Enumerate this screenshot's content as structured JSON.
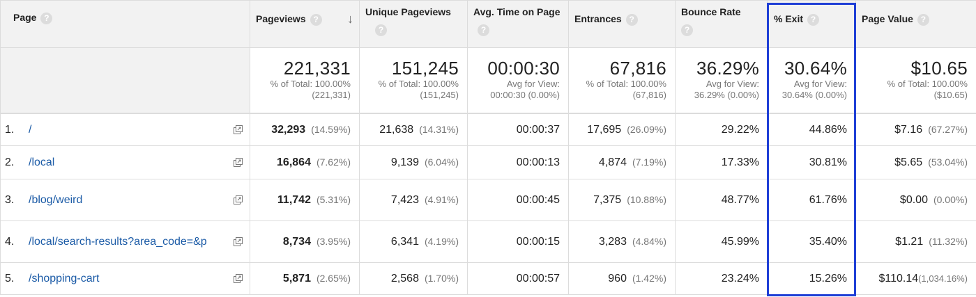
{
  "columns": [
    {
      "label": "Page"
    },
    {
      "label": "Pageviews"
    },
    {
      "label": "Unique Pageviews"
    },
    {
      "label": "Avg. Time on Page"
    },
    {
      "label": "Entrances"
    },
    {
      "label": "Bounce Rate"
    },
    {
      "label": "% Exit"
    },
    {
      "label": "Page Value"
    }
  ],
  "totals": {
    "pageviews": {
      "value": "221,331",
      "line1": "% of Total: 100.00%",
      "line2": "(221,331)"
    },
    "unique_pageviews": {
      "value": "151,245",
      "line1": "% of Total: 100.00%",
      "line2": "(151,245)"
    },
    "avg_time": {
      "value": "00:00:30",
      "line1": "Avg for View:",
      "line2": "00:00:30 (0.00%)"
    },
    "entrances": {
      "value": "67,816",
      "line1": "% of Total: 100.00%",
      "line2": "(67,816)"
    },
    "bounce_rate": {
      "value": "36.29%",
      "line1": "Avg for View:",
      "line2": "36.29% (0.00%)"
    },
    "exit": {
      "value": "30.64%",
      "line1": "Avg for View:",
      "line2": "30.64% (0.00%)"
    },
    "page_value": {
      "value": "$10.65",
      "line1": "% of Total: 100.00%",
      "line2": "($10.65)"
    }
  },
  "rows": [
    {
      "index": "1.",
      "page": "/",
      "pageviews": "32,293",
      "pageviews_pct": "(14.59%)",
      "unique": "21,638",
      "unique_pct": "(14.31%)",
      "avg_time": "00:00:37",
      "entrances": "17,695",
      "entrances_pct": "(26.09%)",
      "bounce": "29.22%",
      "exit": "44.86%",
      "value": "$7.16",
      "value_pct": "(67.27%)"
    },
    {
      "index": "2.",
      "page": "/local",
      "pageviews": "16,864",
      "pageviews_pct": "(7.62%)",
      "unique": "9,139",
      "unique_pct": "(6.04%)",
      "avg_time": "00:00:13",
      "entrances": "4,874",
      "entrances_pct": "(7.19%)",
      "bounce": "17.33%",
      "exit": "30.81%",
      "value": "$5.65",
      "value_pct": "(53.04%)"
    },
    {
      "index": "3.",
      "page": "/blog/weird",
      "pageviews": "11,742",
      "pageviews_pct": "(5.31%)",
      "unique": "7,423",
      "unique_pct": "(4.91%)",
      "avg_time": "00:00:45",
      "entrances": "7,375",
      "entrances_pct": "(10.88%)",
      "bounce": "48.77%",
      "exit": "61.76%",
      "value": "$0.00",
      "value_pct": "(0.00%)"
    },
    {
      "index": "4.",
      "page": "/local/search-results?area_code=&p",
      "pageviews": "8,734",
      "pageviews_pct": "(3.95%)",
      "unique": "6,341",
      "unique_pct": "(4.19%)",
      "avg_time": "00:00:15",
      "entrances": "3,283",
      "entrances_pct": "(4.84%)",
      "bounce": "45.99%",
      "exit": "35.40%",
      "value": "$1.21",
      "value_pct": "(11.32%)"
    },
    {
      "index": "5.",
      "page": "/shopping-cart",
      "pageviews": "5,871",
      "pageviews_pct": "(2.65%)",
      "unique": "2,568",
      "unique_pct": "(1.70%)",
      "avg_time": "00:00:57",
      "entrances": "960",
      "entrances_pct": "(1.42%)",
      "bounce": "23.24%",
      "exit": "15.26%",
      "value": "$110.14",
      "value_pct": "(1,034.16%)"
    }
  ],
  "colors": {
    "highlight": "#1f3fd6",
    "link": "#1a5aa6",
    "header_bg": "#f2f2f2"
  },
  "icons": {
    "help": "question-circle-icon",
    "sort": "arrow-down-icon",
    "open": "external-link-icon"
  }
}
